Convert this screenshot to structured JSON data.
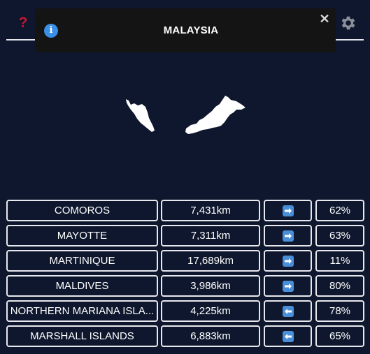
{
  "toast": {
    "title": "MALAYSIA",
    "info_icon": "info-icon",
    "close_icon": "close-icon"
  },
  "header": {
    "help_icon": "help-icon",
    "settings_icon": "gear-icon",
    "help_color": "#c4152d"
  },
  "map": {
    "country": "MALAYSIA"
  },
  "guesses": [
    {
      "country": "COMOROS",
      "distance": "7,431km",
      "direction": "arrow-right",
      "percent": "62%"
    },
    {
      "country": "MAYOTTE",
      "distance": "7,311km",
      "direction": "arrow-right",
      "percent": "63%"
    },
    {
      "country": "MARTINIQUE",
      "distance": "17,689km",
      "direction": "arrow-right",
      "percent": "11%"
    },
    {
      "country": "MALDIVES",
      "distance": "3,986km",
      "direction": "arrow-right",
      "percent": "80%"
    },
    {
      "country": "NORTHERN MARIANA ISLA...",
      "distance": "4,225km",
      "direction": "arrow-left",
      "percent": "78%"
    },
    {
      "country": "MARSHALL ISLANDS",
      "distance": "6,883km",
      "direction": "arrow-left",
      "percent": "65%"
    }
  ],
  "colors": {
    "background": "#0e172d",
    "border": "#e8e8ee",
    "arrow_tile": "#4a8ed8",
    "toast": "#141414"
  }
}
